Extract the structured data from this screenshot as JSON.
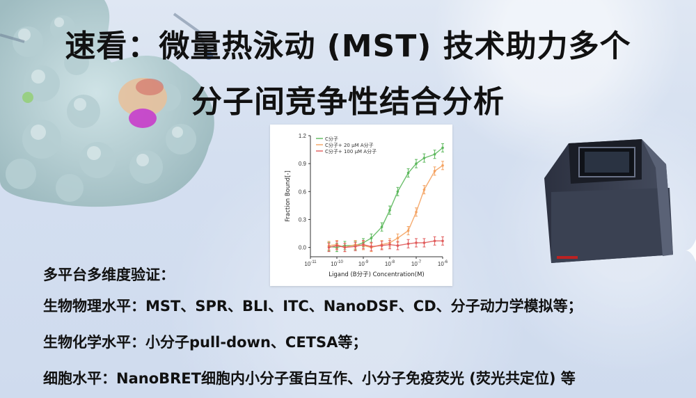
{
  "title": {
    "line1": "速看：微量热泳动 (MST) 技术助力多个",
    "line2": "分子间竞争性结合分析"
  },
  "chart_data": {
    "type": "line",
    "ylabel": "Fraction Bound[-]",
    "xlabel": "Ligand (B分子) Concentration(M)",
    "xscale": "log",
    "xlim": [
      1e-11,
      1e-06
    ],
    "ylim": [
      -0.1,
      1.2
    ],
    "x_ticks": [
      "10-11",
      "10-10",
      "10-9",
      "10-8",
      "10-7",
      "10-6"
    ],
    "y_ticks": [
      "0.0",
      "0.3",
      "0.6",
      "0.9",
      "1.2"
    ],
    "legend_position": "top-left",
    "series": [
      {
        "name": "C分子",
        "color": "#5cb85c",
        "x": [
          5e-11,
          1e-10,
          2e-10,
          5e-10,
          1e-09,
          2e-09,
          5e-09,
          1e-08,
          2e-08,
          5e-08,
          1e-07,
          2e-07,
          5e-07,
          1e-06
        ],
        "y": [
          0.01,
          0.0,
          0.02,
          0.02,
          0.05,
          0.1,
          0.22,
          0.4,
          0.6,
          0.8,
          0.9,
          0.96,
          1.0,
          1.07
        ]
      },
      {
        "name": "C分子+ 20 μM A分子",
        "color": "#f4a261",
        "x": [
          5e-11,
          1e-10,
          2e-10,
          5e-10,
          1e-09,
          2e-09,
          5e-09,
          1e-08,
          2e-08,
          5e-08,
          1e-07,
          2e-07,
          5e-07,
          1e-06
        ],
        "y": [
          0.02,
          0.03,
          0.0,
          0.03,
          0.02,
          0.0,
          0.03,
          0.05,
          0.1,
          0.18,
          0.38,
          0.62,
          0.82,
          0.88
        ]
      },
      {
        "name": "C分子+ 100 μM A分子",
        "color": "#e05a5a",
        "x": [
          5e-11,
          1e-10,
          2e-10,
          5e-10,
          1e-09,
          2e-09,
          5e-09,
          1e-08,
          2e-08,
          5e-08,
          1e-07,
          2e-07,
          5e-07,
          1e-06
        ],
        "y": [
          0.0,
          0.02,
          0.0,
          0.01,
          0.03,
          0.01,
          0.02,
          0.03,
          0.02,
          0.04,
          0.05,
          0.05,
          0.07,
          0.07
        ]
      }
    ]
  },
  "body": {
    "heading": "多平台多维度验证：",
    "biophysics": "生物物理水平：MST、SPR、BLI、ITC、NanoDSF、CD、分子动力学模拟等；",
    "biochemistry": "生物化学水平：小分子pull-down、CETSA等；",
    "cellular": "细胞水平：NanoBRET细胞内小分子蛋白互作、小分子免疫荧光 (荧光共定位) 等"
  }
}
